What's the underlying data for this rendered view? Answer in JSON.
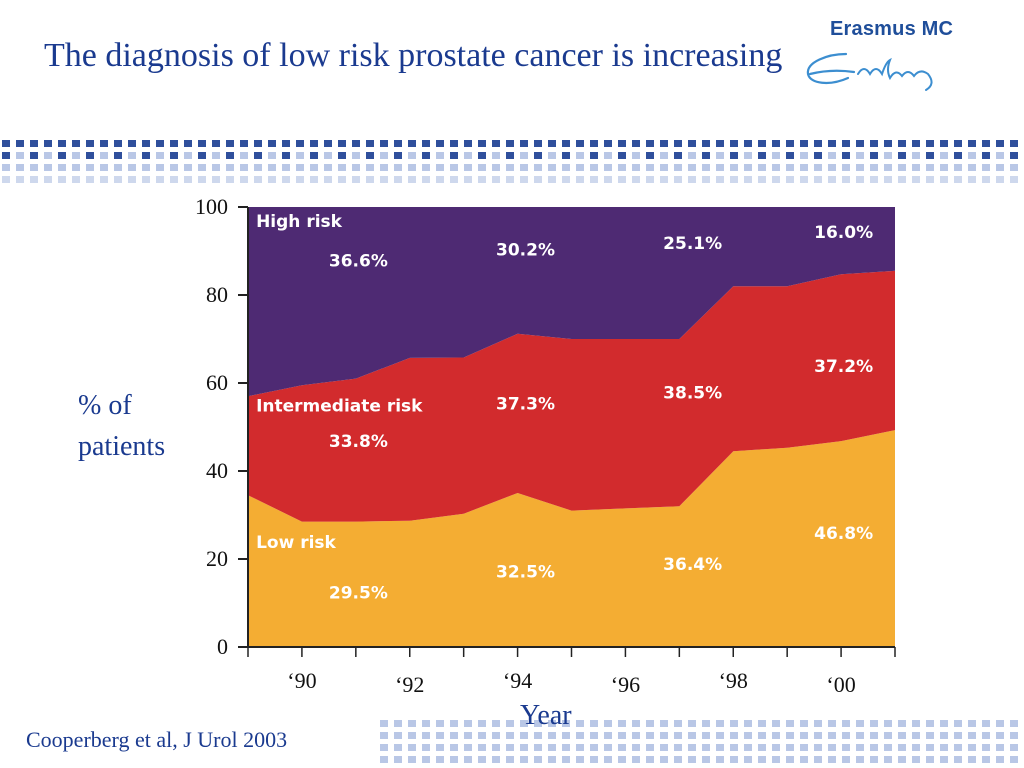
{
  "slide": {
    "title": "The diagnosis of low risk prostate cancer is increasing",
    "citation": "Cooperberg et al, J Urol 2003"
  },
  "logo": {
    "name": "Erasmus MC",
    "signature": "Erasmus"
  },
  "colors": {
    "title_text": "#1a3a8f",
    "low_risk": "#f4ad33",
    "intermediate_risk": "#d22b2d",
    "high_risk": "#4e2a73",
    "band_dark": "#2f4f9c",
    "band_light": "#b9c7e6"
  },
  "chart_data": {
    "type": "area",
    "stacked": true,
    "xlabel": "Year",
    "ylabel": "% of patients",
    "ylim": [
      0,
      100
    ],
    "yticks": [
      0,
      20,
      40,
      60,
      80,
      100
    ],
    "xlim": [
      1989,
      2001
    ],
    "x": [
      1989,
      1990,
      1991,
      1992,
      1993,
      1994,
      1995,
      1996,
      1997,
      1998,
      1999,
      2000,
      2001
    ],
    "xtick_labels": [
      {
        "year": 1990,
        "label": "‘90"
      },
      {
        "year": 1992,
        "label": "‘92"
      },
      {
        "year": 1994,
        "label": "‘94"
      },
      {
        "year": 1996,
        "label": "‘96"
      },
      {
        "year": 1998,
        "label": "‘98"
      },
      {
        "year": 2000,
        "label": "‘00"
      }
    ],
    "series": [
      {
        "name": "Low risk",
        "color": "#f4ad33",
        "values": [
          34.5,
          28.5,
          28.5,
          28.7,
          30.3,
          35.0,
          31.0,
          31.5,
          32.0,
          44.5,
          45.3,
          46.8,
          49.3
        ]
      },
      {
        "name": "Intermediate risk",
        "color": "#d22b2d",
        "values": [
          22.5,
          31.0,
          32.5,
          37.0,
          35.5,
          36.2,
          39.0,
          38.5,
          38.0,
          37.5,
          36.7,
          37.9,
          36.2
        ]
      },
      {
        "name": "High risk",
        "color": "#4e2a73",
        "values": [
          43.0,
          40.5,
          39.0,
          34.3,
          34.2,
          28.8,
          30.0,
          30.0,
          30.0,
          18.0,
          18.0,
          15.3,
          14.5
        ]
      }
    ],
    "area_labels": [
      {
        "text": "High risk",
        "x": 1989.15,
        "y": 95.5
      },
      {
        "text": "36.6%",
        "x": 1990.5,
        "y": 86.5
      },
      {
        "text": "30.2%",
        "x": 1993.6,
        "y": 89.0
      },
      {
        "text": "25.1%",
        "x": 1996.7,
        "y": 90.5
      },
      {
        "text": "16.0%",
        "x": 1999.5,
        "y": 93.0
      },
      {
        "text": "Intermediate risk",
        "x": 1989.15,
        "y": 53.5
      },
      {
        "text": "33.8%",
        "x": 1990.5,
        "y": 45.5
      },
      {
        "text": "37.3%",
        "x": 1993.6,
        "y": 54.0
      },
      {
        "text": "38.5%",
        "x": 1996.7,
        "y": 56.5
      },
      {
        "text": "37.2%",
        "x": 1999.5,
        "y": 62.5
      },
      {
        "text": "Low risk",
        "x": 1989.15,
        "y": 22.5
      },
      {
        "text": "29.5%",
        "x": 1990.5,
        "y": 11.0
      },
      {
        "text": "32.5%",
        "x": 1993.6,
        "y": 15.8
      },
      {
        "text": "36.4%",
        "x": 1996.7,
        "y": 17.5
      },
      {
        "text": "46.8%",
        "x": 1999.5,
        "y": 24.5
      }
    ]
  }
}
